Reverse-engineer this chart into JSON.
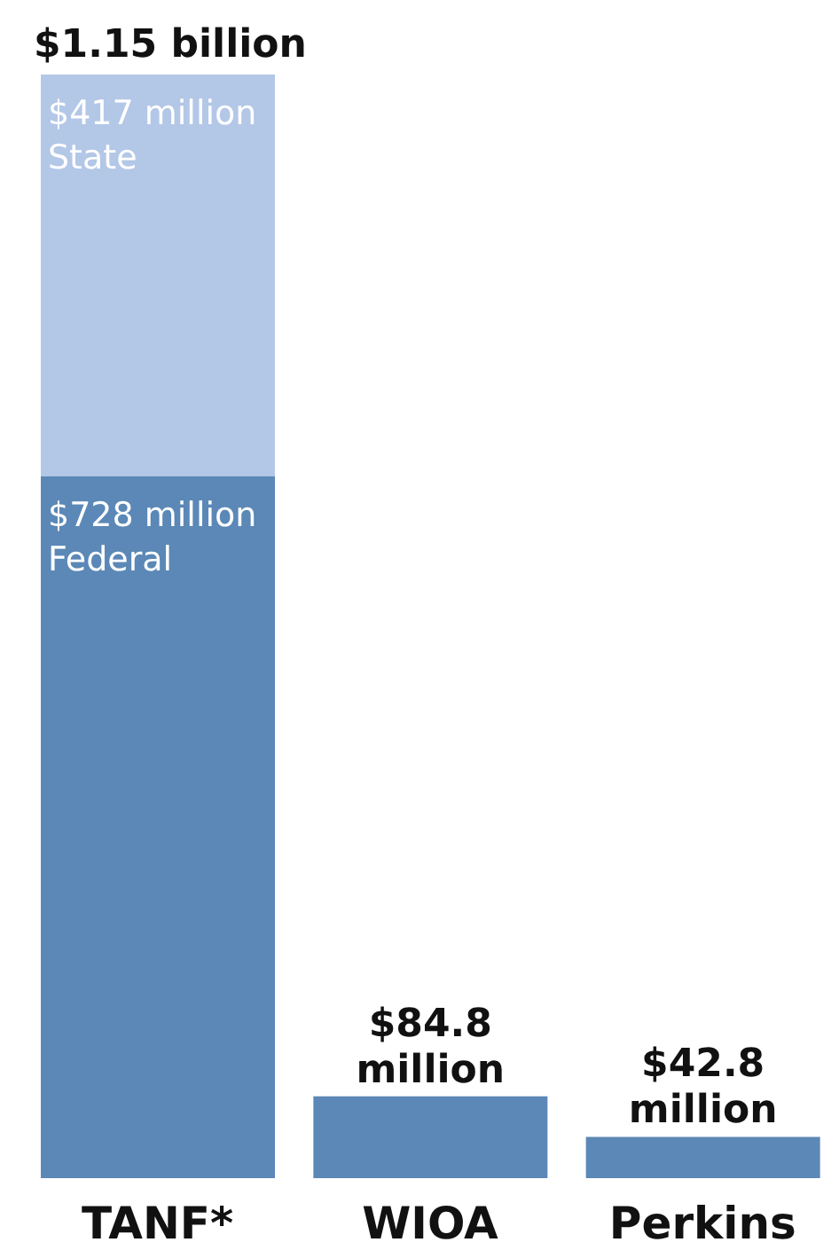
{
  "chart_data": {
    "type": "bar",
    "stacked": true,
    "categories": [
      "TANF*",
      "WIOA",
      "Perkins"
    ],
    "series": [
      {
        "name": "Federal",
        "color": "#5b88b6",
        "values": [
          728,
          84.8,
          42.8
        ],
        "value_labels": [
          "$728 million",
          "$84.8 million",
          "$42.8 million"
        ]
      },
      {
        "name": "State",
        "color": "#b3c7e7",
        "values": [
          417,
          null,
          null
        ],
        "value_labels": [
          "$417 million",
          null,
          null
        ]
      }
    ],
    "totals": [
      "$1.15 billion",
      null,
      null
    ],
    "tick_labels": "x",
    "legend": false,
    "grid": false
  }
}
